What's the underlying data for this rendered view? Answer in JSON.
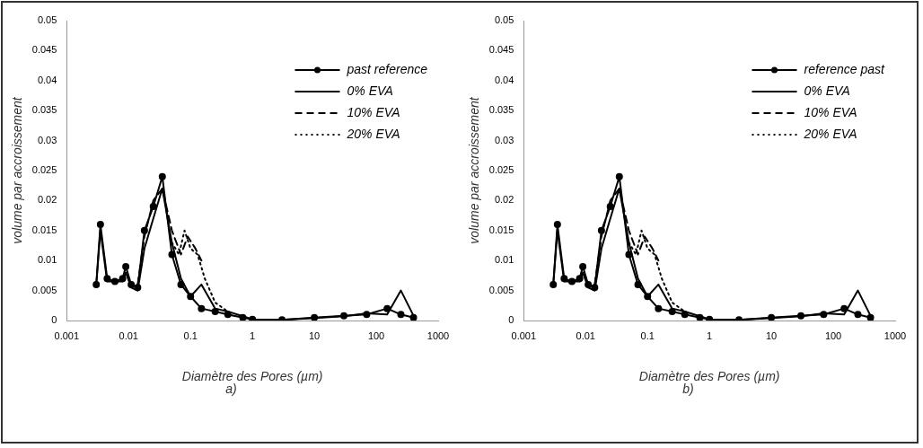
{
  "chart_data": [
    {
      "type": "line",
      "xlabel": "Diamètre des Pores (µm)",
      "ylabel": "volume par accroissement",
      "log": "x",
      "xlim": [
        0.001,
        1000
      ],
      "xticks": [
        0.001,
        0.01,
        0.1,
        1,
        10,
        100,
        1000
      ],
      "ylim": [
        0,
        0.05
      ],
      "yticks": [
        0,
        0.005,
        0.01,
        0.015,
        0.02,
        0.025,
        0.03,
        0.035,
        0.04,
        0.045,
        0.05
      ],
      "grid": false,
      "legend": "top right",
      "annotations": [
        "a)"
      ],
      "series": [
        {
          "name": "past reference",
          "color": "#000000",
          "marker": "circle",
          "line_style": "solid",
          "x": [
            0.003,
            0.0035,
            0.0045,
            0.006,
            0.008,
            0.009,
            0.011,
            0.014,
            0.018,
            0.025,
            0.035,
            0.05,
            0.07,
            0.1,
            0.15,
            0.25,
            0.4,
            0.7,
            1,
            3,
            10,
            30,
            70,
            150,
            250,
            400
          ],
          "values": [
            0.006,
            0.016,
            0.007,
            0.0065,
            0.007,
            0.009,
            0.006,
            0.0055,
            0.015,
            0.019,
            0.024,
            0.011,
            0.006,
            0.004,
            0.002,
            0.0015,
            0.001,
            0.0005,
            0.0002,
            0.0001,
            0.0005,
            0.0008,
            0.001,
            0.002,
            0.001,
            0.0005
          ]
        },
        {
          "name": "0% EVA",
          "color": "#000000",
          "marker": "none",
          "line_style": "solid",
          "x": [
            0.003,
            0.0035,
            0.0045,
            0.006,
            0.008,
            0.009,
            0.011,
            0.014,
            0.018,
            0.025,
            0.035,
            0.05,
            0.07,
            0.1,
            0.15,
            0.25,
            0.4,
            0.7,
            1,
            3,
            10,
            30,
            70,
            150,
            250,
            400
          ],
          "values": [
            0.006,
            0.015,
            0.0065,
            0.0065,
            0.0065,
            0.008,
            0.0055,
            0.005,
            0.012,
            0.017,
            0.022,
            0.013,
            0.007,
            0.004,
            0.006,
            0.002,
            0.0015,
            0.0007,
            0.0002,
            0.0001,
            0.0004,
            0.0007,
            0.0012,
            0.001,
            0.005,
            0.0008
          ]
        },
        {
          "name": "10% EVA",
          "color": "#000000",
          "marker": "none",
          "line_style": "dashed",
          "x": [
            0.014,
            0.018,
            0.025,
            0.035,
            0.05,
            0.07,
            0.09,
            0.12,
            0.15
          ],
          "values": [
            0.006,
            0.014,
            0.02,
            0.022,
            0.015,
            0.011,
            0.014,
            0.012,
            0.01
          ]
        },
        {
          "name": "20% EVA",
          "color": "#000000",
          "marker": "none",
          "line_style": "dotted",
          "x": [
            0.05,
            0.065,
            0.08,
            0.1,
            0.13,
            0.17,
            0.25,
            0.4
          ],
          "values": [
            0.013,
            0.011,
            0.015,
            0.012,
            0.011,
            0.007,
            0.003,
            0.0015
          ]
        }
      ]
    },
    {
      "type": "line",
      "xlabel": "Diamètre des Pores (µm)",
      "ylabel": "volume par accroissement",
      "log": "x",
      "xlim": [
        0.001,
        1000
      ],
      "xticks": [
        0.001,
        0.01,
        0.1,
        1,
        10,
        100,
        1000
      ],
      "ylim": [
        0,
        0.05
      ],
      "yticks": [
        0,
        0.005,
        0.01,
        0.015,
        0.02,
        0.025,
        0.03,
        0.035,
        0.04,
        0.045,
        0.05
      ],
      "grid": false,
      "legend": "top right",
      "annotations": [
        "b)"
      ],
      "series": [
        {
          "name": "reference past",
          "color": "#000000",
          "marker": "circle",
          "line_style": "solid",
          "x": [
            0.003,
            0.0035,
            0.0045,
            0.006,
            0.008,
            0.009,
            0.011,
            0.014,
            0.018,
            0.025,
            0.035,
            0.05,
            0.07,
            0.1,
            0.15,
            0.25,
            0.4,
            0.7,
            1,
            3,
            10,
            30,
            70,
            150,
            250,
            400
          ],
          "values": [
            0.006,
            0.016,
            0.007,
            0.0065,
            0.007,
            0.009,
            0.006,
            0.0055,
            0.015,
            0.019,
            0.024,
            0.011,
            0.006,
            0.004,
            0.002,
            0.0015,
            0.001,
            0.0005,
            0.0002,
            0.0001,
            0.0005,
            0.0008,
            0.001,
            0.002,
            0.001,
            0.0005
          ]
        },
        {
          "name": "0% EVA",
          "color": "#000000",
          "marker": "none",
          "line_style": "solid",
          "x": [
            0.003,
            0.0035,
            0.0045,
            0.006,
            0.008,
            0.009,
            0.011,
            0.014,
            0.018,
            0.025,
            0.035,
            0.05,
            0.07,
            0.1,
            0.15,
            0.25,
            0.4,
            0.7,
            1,
            3,
            10,
            30,
            70,
            150,
            250,
            400
          ],
          "values": [
            0.006,
            0.015,
            0.0065,
            0.0065,
            0.0065,
            0.008,
            0.0055,
            0.005,
            0.012,
            0.017,
            0.022,
            0.013,
            0.007,
            0.004,
            0.006,
            0.002,
            0.0015,
            0.0007,
            0.0002,
            0.0001,
            0.0004,
            0.0007,
            0.0012,
            0.001,
            0.005,
            0.0008
          ]
        },
        {
          "name": "10% EVA",
          "color": "#000000",
          "marker": "none",
          "line_style": "dashed",
          "x": [
            0.014,
            0.018,
            0.025,
            0.035,
            0.05,
            0.07,
            0.09,
            0.12,
            0.15
          ],
          "values": [
            0.006,
            0.014,
            0.02,
            0.022,
            0.015,
            0.011,
            0.014,
            0.012,
            0.01
          ]
        },
        {
          "name": "20% EVA",
          "color": "#000000",
          "marker": "none",
          "line_style": "dotted",
          "x": [
            0.05,
            0.065,
            0.08,
            0.1,
            0.13,
            0.17,
            0.25,
            0.4
          ],
          "values": [
            0.013,
            0.011,
            0.015,
            0.012,
            0.011,
            0.007,
            0.003,
            0.0015
          ]
        }
      ]
    }
  ]
}
